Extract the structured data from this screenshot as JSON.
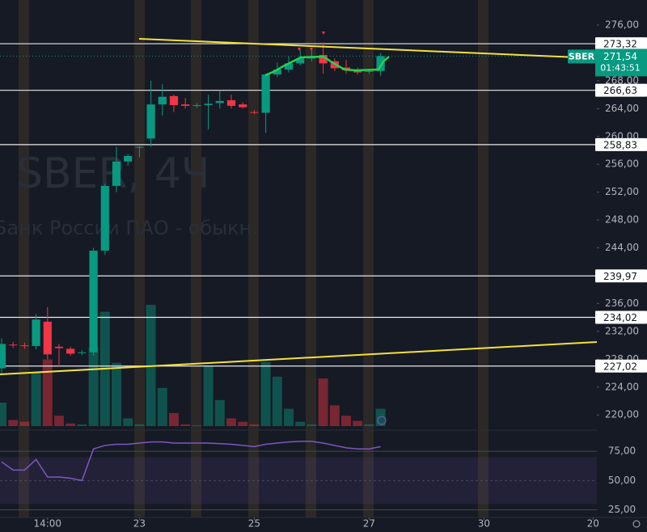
{
  "chart_data": {
    "type": "candlestick",
    "watermark": {
      "title": "SBER, 4Ч",
      "subtitle": "Банк России ПАО - обыкн."
    },
    "up_color": "#089981",
    "down_color": "#f23645",
    "xlim": [
      -0.14,
      51.83
    ],
    "xticks": [
      {
        "value": 4,
        "label": "14:00"
      },
      {
        "value": 12,
        "label": "23"
      },
      {
        "value": 22,
        "label": "25"
      },
      {
        "value": 32,
        "label": "27"
      },
      {
        "value": 42,
        "label": "30"
      },
      {
        "value": 51.5,
        "label": "20"
      }
    ],
    "ylim": [
      218.4,
      279.6
    ],
    "yticks": [
      {
        "value": 276,
        "label": "276,00"
      },
      {
        "value": 268,
        "label": "268,00"
      },
      {
        "value": 264,
        "label": "264,00"
      },
      {
        "value": 260,
        "label": "260,00"
      },
      {
        "value": 256,
        "label": "256,00"
      },
      {
        "value": 252,
        "label": "252,00"
      },
      {
        "value": 248,
        "label": "248,00"
      },
      {
        "value": 244,
        "label": "244,00"
      },
      {
        "value": 236,
        "label": "236,00"
      },
      {
        "value": 232,
        "label": "232,00"
      },
      {
        "value": 228,
        "label": "228,00"
      },
      {
        "value": 224,
        "label": "224,00"
      },
      {
        "value": 220,
        "label": "220,00"
      }
    ],
    "grid": false,
    "candles": {
      "open": [
        226.7,
        230.1,
        230.0,
        229.9,
        233.4,
        229.8,
        229.5,
        228.9,
        229.0,
        243.6,
        252.9,
        256.4,
        258.4,
        259.7,
        264.6,
        265.8,
        264.6,
        264.4,
        264.5,
        264.8,
        265.2,
        264.6,
        263.5,
        263.4,
        268.9,
        269.6,
        270.5,
        271.2,
        271.7,
        270.8,
        269.9,
        269.5,
        269.3,
        269.4
      ],
      "high": [
        231.0,
        230.5,
        230.4,
        234.5,
        235.5,
        230.2,
        229.8,
        229.3,
        244.0,
        253.2,
        258.5,
        257.5,
        258.8,
        268.0,
        267.5,
        266.0,
        265.5,
        264.8,
        266.0,
        266.5,
        266.0,
        264.9,
        263.8,
        269.0,
        270.6,
        271.5,
        272.5,
        272.5,
        273.5,
        271.2,
        271.0,
        269.9,
        269.7,
        272.0
      ],
      "low": [
        226.0,
        229.6,
        229.5,
        229.4,
        228.0,
        227.0,
        228.5,
        228.6,
        228.5,
        243.0,
        252.0,
        255.8,
        257.0,
        258.5,
        263.0,
        263.5,
        264.0,
        264.1,
        261.0,
        264.0,
        264.0,
        264.0,
        263.2,
        260.5,
        268.5,
        269.2,
        270.2,
        270.8,
        269.0,
        269.4,
        269.0,
        268.9,
        269.0,
        268.7
      ],
      "close": [
        230.2,
        230.0,
        229.9,
        233.7,
        228.7,
        229.6,
        228.8,
        229.0,
        243.6,
        252.9,
        256.4,
        257.2,
        258.5,
        264.6,
        265.7,
        264.5,
        264.4,
        264.5,
        264.7,
        265.1,
        264.4,
        264.2,
        263.4,
        268.9,
        269.6,
        270.5,
        271.2,
        271.5,
        270.5,
        269.8,
        269.5,
        269.2,
        269.4,
        271.54
      ]
    },
    "volume": [
      27,
      7,
      5,
      61,
      77,
      12,
      3,
      2,
      91,
      132,
      73,
      9,
      2,
      140,
      44,
      15,
      2,
      1,
      70,
      30,
      9,
      5,
      2,
      74,
      57,
      20,
      5,
      2,
      55,
      24,
      12,
      6,
      2,
      20
    ],
    "levels": [
      {
        "value": 273.32,
        "label": "273,32"
      },
      {
        "value": 266.63,
        "label": "266,63"
      },
      {
        "value": 258.83,
        "label": "258,83"
      },
      {
        "value": 239.97,
        "label": "239,97"
      },
      {
        "value": 234.02,
        "label": "234,02"
      },
      {
        "value": 227.02,
        "label": "227,02"
      }
    ],
    "last": {
      "value": 271.54,
      "label": "271,54",
      "countdown": "01:43:51",
      "symbol": "SBER"
    },
    "rsi": {
      "values": [
        66,
        59,
        59,
        68,
        53,
        53,
        52,
        50,
        77,
        80,
        81,
        81,
        82,
        83,
        83,
        82,
        82,
        82,
        82,
        81.5,
        81,
        80,
        79,
        81,
        82,
        83,
        83.5,
        83.5,
        82,
        80,
        78,
        77,
        77,
        79
      ],
      "color": "#7e57c2",
      "ylim": [
        18.5,
        91
      ],
      "yticks": [
        {
          "value": 75,
          "label": "75,00"
        },
        {
          "value": 50,
          "label": "50,00"
        },
        {
          "value": 25,
          "label": "25,00"
        }
      ]
    }
  }
}
